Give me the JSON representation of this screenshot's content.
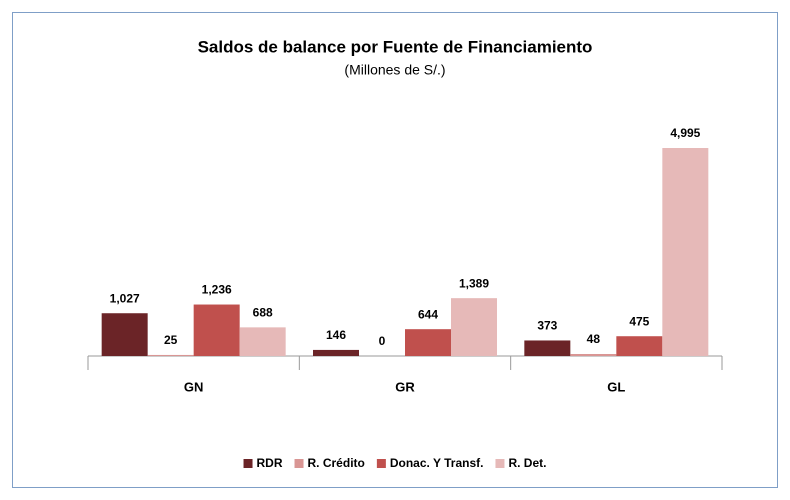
{
  "chart_data": {
    "type": "bar",
    "title": "Saldos de balance por Fuente de Financiamiento",
    "subtitle": "(Millones de S/.)",
    "categories": [
      "GN",
      "GR",
      "GL"
    ],
    "series": [
      {
        "name": "RDR",
        "color": "#6b2427",
        "values": [
          1027,
          146,
          373
        ],
        "value_labels": [
          "1,027",
          "146",
          "373"
        ]
      },
      {
        "name": "R. Crédito",
        "color": "#d99694",
        "values": [
          25,
          0,
          48
        ],
        "value_labels": [
          "25",
          "0",
          "48"
        ]
      },
      {
        "name": "Donac. Y Transf.",
        "color": "#c0504d",
        "values": [
          1236,
          644,
          475
        ],
        "value_labels": [
          "1,236",
          "644",
          "475"
        ]
      },
      {
        "name": "R. Det.",
        "color": "#e6b9b8",
        "values": [
          688,
          1389,
          4995
        ],
        "value_labels": [
          "688",
          "1,389",
          "4,995"
        ]
      }
    ],
    "legend": "bottom"
  }
}
